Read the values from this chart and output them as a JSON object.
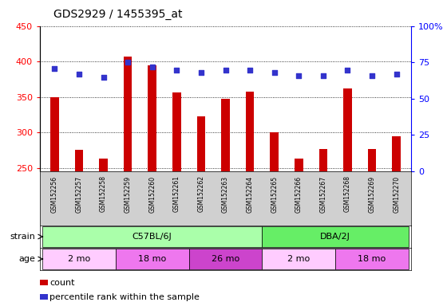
{
  "title": "GDS2929 / 1455395_at",
  "samples": [
    "GSM152256",
    "GSM152257",
    "GSM152258",
    "GSM152259",
    "GSM152260",
    "GSM152261",
    "GSM152262",
    "GSM152263",
    "GSM152264",
    "GSM152265",
    "GSM152266",
    "GSM152267",
    "GSM152268",
    "GSM152269",
    "GSM152270"
  ],
  "counts": [
    350,
    275,
    263,
    407,
    395,
    357,
    323,
    347,
    358,
    300,
    263,
    276,
    362,
    276,
    295
  ],
  "percentile_ranks": [
    71,
    67,
    65,
    75,
    72,
    70,
    68,
    70,
    70,
    68,
    66,
    66,
    70,
    66,
    67
  ],
  "ylim_left": [
    245,
    450
  ],
  "ylim_right": [
    0,
    100
  ],
  "yticks_left": [
    250,
    300,
    350,
    400,
    450
  ],
  "yticks_right": [
    0,
    25,
    50,
    75,
    100
  ],
  "bar_color": "#cc0000",
  "dot_color": "#3333cc",
  "grid_color": "#000000",
  "strain_groups": [
    {
      "label": "C57BL/6J",
      "start": 0,
      "end": 9,
      "color": "#aaffaa"
    },
    {
      "label": "DBA/2J",
      "start": 9,
      "end": 15,
      "color": "#66ee66"
    }
  ],
  "age_groups": [
    {
      "label": "2 mo",
      "start": 0,
      "end": 3,
      "color": "#ffccff"
    },
    {
      "label": "18 mo",
      "start": 3,
      "end": 6,
      "color": "#ee77ee"
    },
    {
      "label": "26 mo",
      "start": 6,
      "end": 9,
      "color": "#cc44cc"
    },
    {
      "label": "2 mo",
      "start": 9,
      "end": 12,
      "color": "#ffccff"
    },
    {
      "label": "18 mo",
      "start": 12,
      "end": 15,
      "color": "#ee77ee"
    }
  ],
  "strain_label": "strain",
  "age_label": "age",
  "legend_count_label": "count",
  "legend_pct_label": "percentile rank within the sample",
  "bg_color": "#ffffff",
  "sample_area_color": "#d0d0d0",
  "bar_width": 0.35
}
